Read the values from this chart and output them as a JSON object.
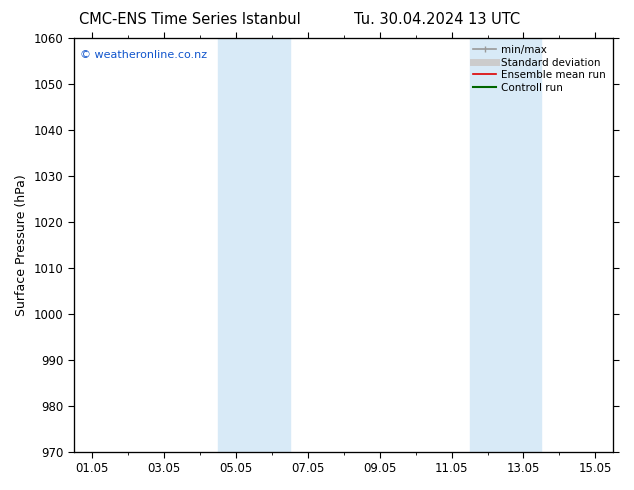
{
  "title": "CMC-ENS Time Series Istanbul",
  "title_right": "Tu. 30.04.2024 13 UTC",
  "ylabel": "Surface Pressure (hPa)",
  "watermark": "© weatheronline.co.nz",
  "ylim": [
    970,
    1060
  ],
  "yticks": [
    970,
    980,
    990,
    1000,
    1010,
    1020,
    1030,
    1040,
    1050,
    1060
  ],
  "xtick_labels": [
    "01.05",
    "03.05",
    "05.05",
    "07.05",
    "09.05",
    "11.05",
    "13.05",
    "15.05"
  ],
  "xtick_positions": [
    0,
    2,
    4,
    6,
    8,
    10,
    12,
    14
  ],
  "xlim": [
    -0.5,
    14.5
  ],
  "shade_bands": [
    {
      "xmin": 3.5,
      "xmax": 5.5,
      "color": "#d8eaf7"
    },
    {
      "xmin": 10.5,
      "xmax": 12.5,
      "color": "#d8eaf7"
    }
  ],
  "legend_items": [
    {
      "label": "min/max",
      "color": "#999999",
      "lw": 1.2
    },
    {
      "label": "Standard deviation",
      "color": "#cccccc",
      "lw": 5
    },
    {
      "label": "Ensemble mean run",
      "color": "#dd0000",
      "lw": 1.2
    },
    {
      "label": "Controll run",
      "color": "#006600",
      "lw": 1.5
    }
  ],
  "background_color": "#ffffff",
  "plot_bg_color": "#ffffff",
  "title_fontsize": 10.5,
  "ylabel_fontsize": 9,
  "tick_fontsize": 8.5,
  "watermark_fontsize": 8,
  "legend_fontsize": 7.5
}
